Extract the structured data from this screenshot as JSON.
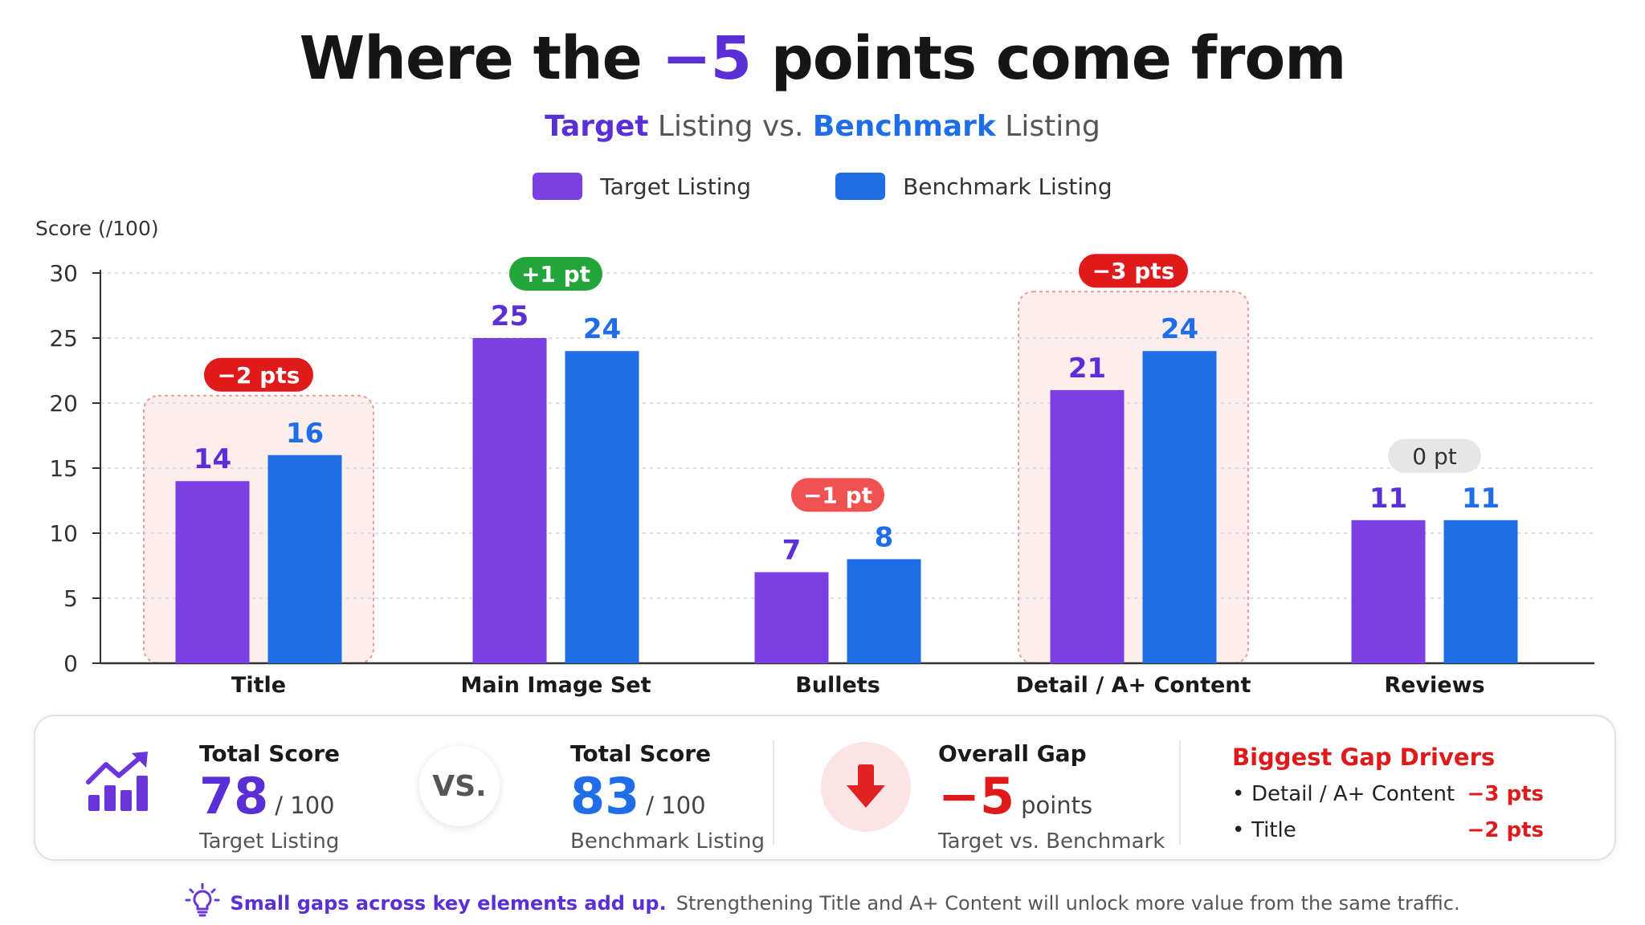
{
  "header": {
    "title_pre": "Where the ",
    "title_accent": "−5",
    "title_post": " points come from",
    "subtitle_target": "Target",
    "subtitle_mid": " Listing vs. ",
    "subtitle_bench": "Benchmark",
    "subtitle_post": " Listing"
  },
  "legend": {
    "target": "Target Listing",
    "benchmark": "Benchmark Listing"
  },
  "colors": {
    "target": "#7b3fe4",
    "benchmark": "#1f6ee8",
    "negative": "#e01a1a",
    "negative_light": "#f05252",
    "positive": "#22a53a",
    "neutral": "#e6e6e6",
    "highlight_fill": "#fdeeee"
  },
  "chart_data": {
    "type": "bar",
    "ylabel": "Score (/100)",
    "ylim": [
      0,
      30
    ],
    "yticks": [
      0,
      5,
      10,
      15,
      20,
      25,
      30
    ],
    "grid": true,
    "legend_position": "top-center",
    "categories": [
      "Title",
      "Main Image Set",
      "Bullets",
      "Detail / A+ Content",
      "Reviews"
    ],
    "series": [
      {
        "name": "Target Listing",
        "values": [
          14,
          25,
          7,
          21,
          11
        ]
      },
      {
        "name": "Benchmark Listing",
        "values": [
          16,
          24,
          8,
          24,
          11
        ]
      }
    ],
    "gap_labels": [
      "−2 pts",
      "+1 pt",
      "−1 pt",
      "−3 pts",
      "0 pt"
    ],
    "gap_kinds": [
      "negative",
      "positive",
      "negative_light",
      "negative",
      "neutral"
    ],
    "highlighted_categories": [
      "Title",
      "Detail / A+ Content"
    ]
  },
  "summary": {
    "target": {
      "label": "Total Score",
      "score": "78",
      "out_of": "/ 100",
      "caption": "Target Listing"
    },
    "vs": "VS.",
    "benchmark": {
      "label": "Total Score",
      "score": "83",
      "out_of": "/ 100",
      "caption": "Benchmark Listing"
    },
    "gap": {
      "label": "Overall Gap",
      "value": "−5",
      "unit": "points",
      "caption": "Target vs. Benchmark"
    },
    "drivers": {
      "title": "Biggest Gap Drivers",
      "items": [
        {
          "name": "Detail / A+ Content",
          "value": "−3 pts"
        },
        {
          "name": "Title",
          "value": "−2 pts"
        }
      ]
    }
  },
  "footnote": {
    "strong": "Small gaps across key elements add up.",
    "rest": "Strengthening Title and A+ Content will unlock more value from the same traffic."
  }
}
